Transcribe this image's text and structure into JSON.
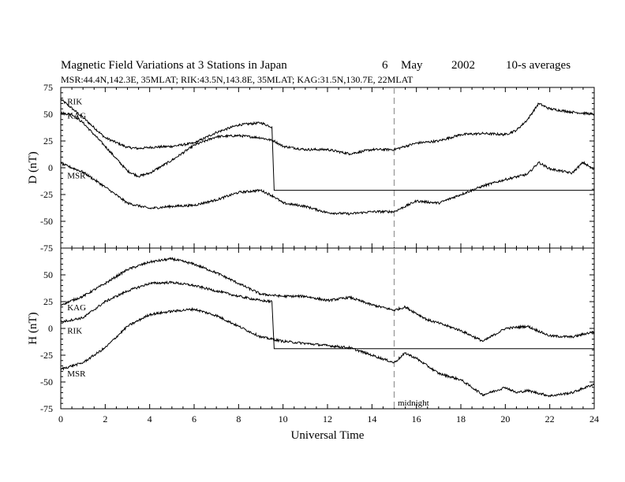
{
  "title": {
    "main": "Magnetic Field Variations at 3 Stations in Japan",
    "day": "6",
    "month": "May",
    "year": "2002",
    "avg": "10-s averages"
  },
  "subtitle": "MSR:44.4N,142.3E, 35MLAT;   RIK:43.5N,143.8E, 35MLAT;   KAG:31.5N,130.7E, 22MLAT",
  "annotation": "midnight",
  "chart_data": [
    {
      "type": "line",
      "panel": "top",
      "xlabel": "",
      "ylabel": "D (nT)",
      "xlim": [
        0,
        24
      ],
      "ylim": [
        -75,
        75
      ],
      "yticks": [
        75,
        50,
        25,
        0,
        -25,
        -50,
        -75
      ],
      "xticks": [
        0,
        2,
        4,
        6,
        8,
        10,
        12,
        14,
        16,
        18,
        20,
        22,
        24
      ],
      "vline_x": 15,
      "series": [
        {
          "name": "RIK",
          "x": [
            0,
            1,
            2,
            3,
            3.5,
            4,
            5,
            6,
            7,
            8,
            9,
            9.5,
            9.6,
            24
          ],
          "y": [
            64,
            47,
            28,
            19,
            18,
            19,
            20,
            23,
            33,
            40,
            42,
            38,
            -21,
            -21
          ]
        },
        {
          "name": "KAG",
          "x": [
            0,
            0.5,
            1,
            2,
            3,
            3.5,
            4,
            5,
            6,
            7,
            8,
            9,
            9.6,
            10,
            11,
            12,
            13,
            14,
            15,
            16,
            17,
            18,
            19,
            20,
            20.5,
            21,
            21.5,
            22,
            23,
            24
          ],
          "y": [
            51,
            50,
            42,
            20,
            -3,
            -8,
            -5,
            7,
            21,
            29,
            30,
            28,
            25,
            20,
            17,
            17,
            13,
            17,
            17,
            23,
            25,
            31,
            32,
            31,
            35,
            45,
            60,
            55,
            52,
            50
          ]
        },
        {
          "name": "MSR",
          "x": [
            0,
            1,
            2,
            3,
            4,
            5,
            6,
            7,
            8,
            9,
            9.6,
            10,
            11,
            12,
            13,
            14,
            15,
            16,
            17,
            18,
            19,
            20,
            21,
            21.5,
            22,
            23,
            23.5,
            24
          ],
          "y": [
            4,
            -4,
            -18,
            -33,
            -38,
            -36,
            -35,
            -30,
            -23,
            -21,
            -27,
            -33,
            -36,
            -42,
            -43,
            -41,
            -41,
            -31,
            -33,
            -25,
            -17,
            -11,
            -6,
            5,
            -1,
            -5,
            5,
            -2
          ]
        }
      ]
    },
    {
      "type": "line",
      "panel": "bottom",
      "xlabel": "Universal Time",
      "ylabel": "H (nT)",
      "xlim": [
        0,
        24
      ],
      "ylim": [
        -75,
        75
      ],
      "yticks": [
        50,
        25,
        0,
        -25,
        -50,
        -75
      ],
      "xticks": [
        0,
        2,
        4,
        6,
        8,
        10,
        12,
        14,
        16,
        18,
        20,
        22,
        24
      ],
      "vline_x": 15,
      "series": [
        {
          "name": "KAG",
          "x": [
            0,
            1,
            2,
            3,
            4,
            5,
            6,
            7,
            8,
            9,
            10,
            11,
            12,
            13,
            14,
            15,
            15.5,
            16,
            16.5,
            17,
            18,
            19,
            20,
            21,
            22,
            23,
            24
          ],
          "y": [
            22,
            30,
            42,
            55,
            62,
            65,
            60,
            52,
            42,
            32,
            30,
            30,
            26,
            29,
            22,
            17,
            20,
            14,
            8,
            5,
            -2,
            -12,
            0,
            2,
            -7,
            -8,
            -3
          ]
        },
        {
          "name": "RIK",
          "x": [
            0,
            1,
            2,
            3,
            4,
            5,
            6,
            7,
            8,
            9,
            9.5,
            9.6,
            24
          ],
          "y": [
            6,
            10,
            25,
            35,
            42,
            43,
            40,
            35,
            30,
            26,
            25,
            -19,
            -19
          ]
        },
        {
          "name": "MSR",
          "x": [
            0,
            1,
            2,
            3,
            4,
            5,
            6,
            7,
            8,
            9,
            10,
            11,
            12,
            13,
            14,
            15,
            15.5,
            16,
            16.5,
            17,
            18,
            19,
            20,
            20.5,
            21,
            22,
            23,
            24
          ],
          "y": [
            -38,
            -32,
            -18,
            2,
            13,
            16,
            18,
            12,
            2,
            -8,
            -12,
            -14,
            -16,
            -18,
            -25,
            -32,
            -23,
            -28,
            -35,
            -42,
            -48,
            -62,
            -55,
            -60,
            -58,
            -63,
            -60,
            -52
          ]
        }
      ]
    }
  ]
}
